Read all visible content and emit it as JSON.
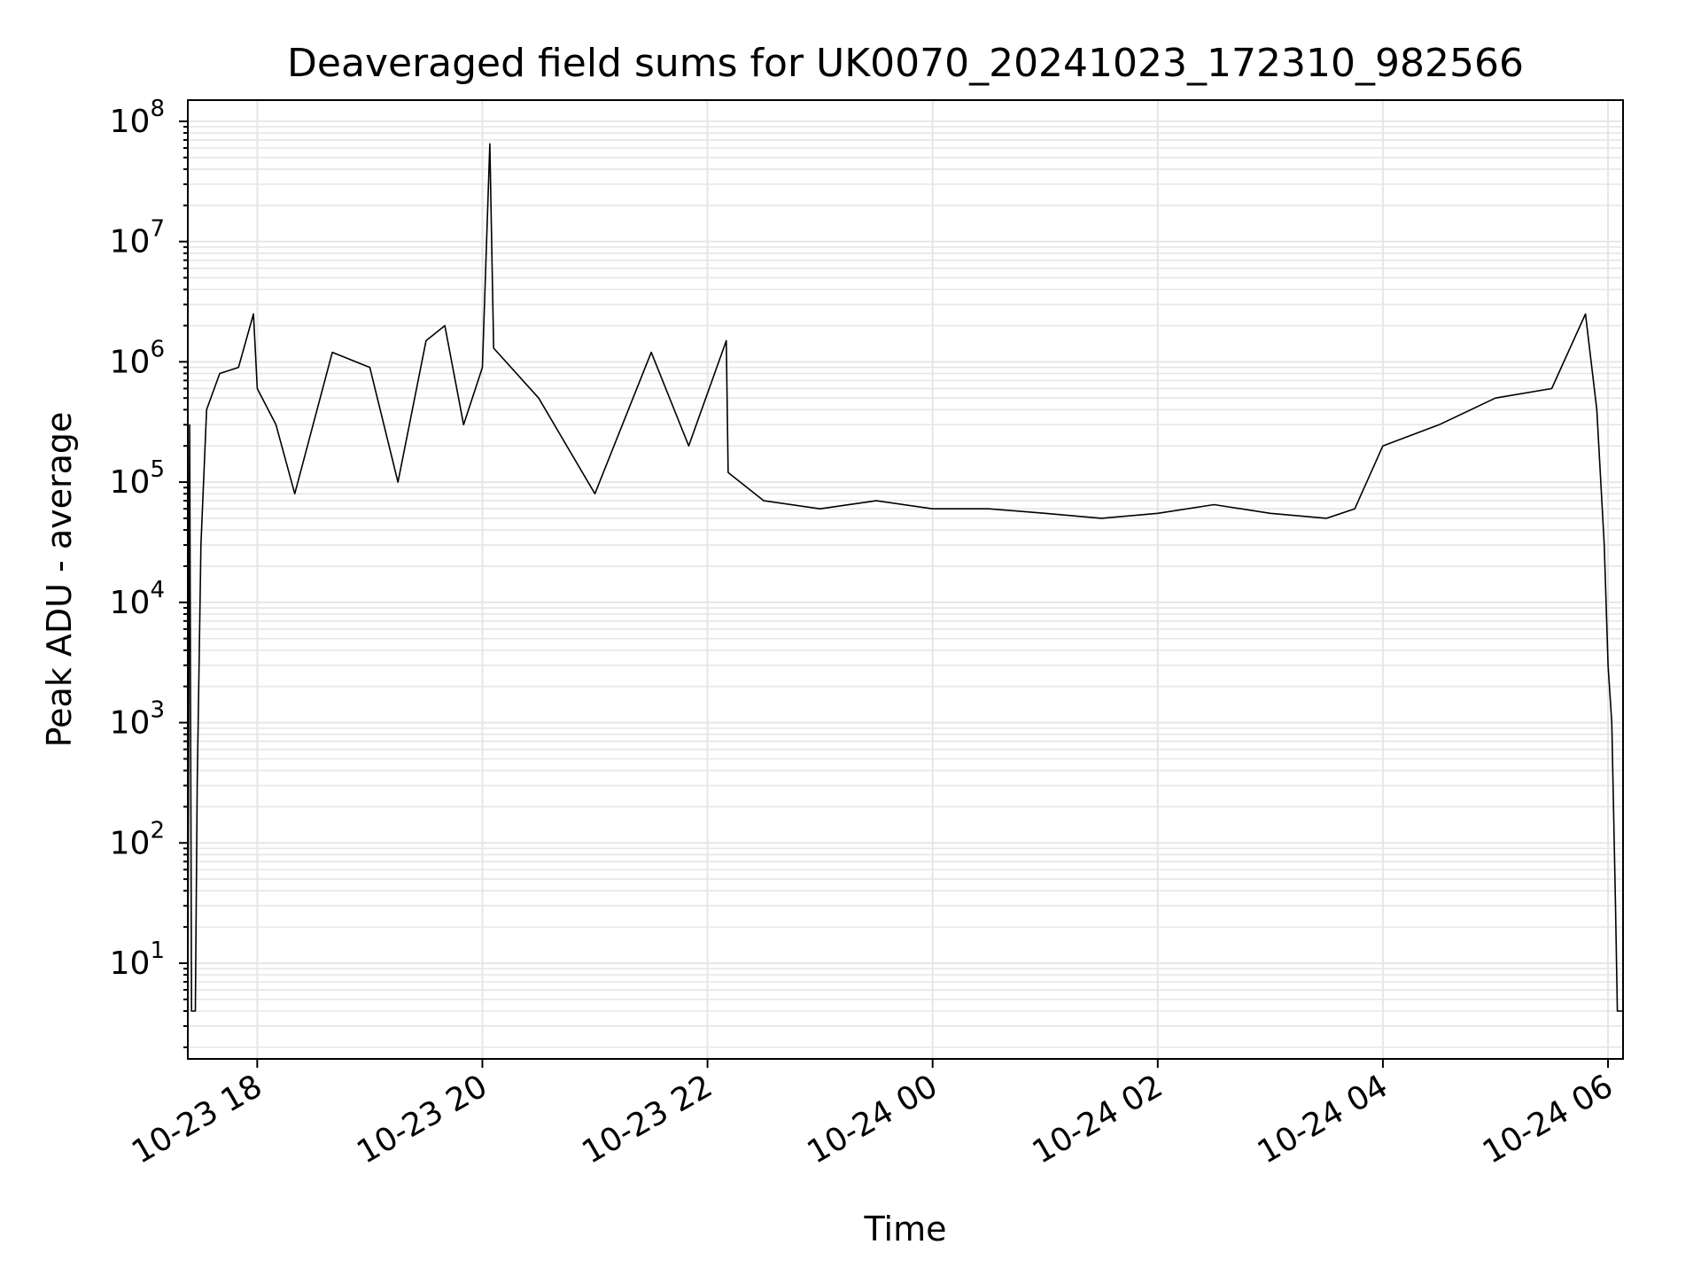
{
  "chart_data": {
    "type": "line",
    "title": "Deaveraged field sums for UK0070_20241023_172310_982566",
    "xlabel": "Time",
    "ylabel": "Peak ADU - average",
    "x_range": [
      "2024-10-23 17:23",
      "2024-10-24 06:08"
    ],
    "ylim": [
      1.6,
      150000000
    ],
    "y_scale": "log",
    "grid": true,
    "color": "#000000",
    "x_ticks": [
      {
        "time": "2024-10-23 18:00",
        "label": "10-23 18"
      },
      {
        "time": "2024-10-23 20:00",
        "label": "10-23 20"
      },
      {
        "time": "2024-10-23 22:00",
        "label": "10-23 22"
      },
      {
        "time": "2024-10-24 00:00",
        "label": "10-24 00"
      },
      {
        "time": "2024-10-24 02:00",
        "label": "10-24 02"
      },
      {
        "time": "2024-10-24 04:00",
        "label": "10-24 04"
      },
      {
        "time": "2024-10-24 06:00",
        "label": "10-24 06"
      }
    ],
    "y_ticks": [
      {
        "value": 10,
        "base": "10",
        "exp": "1"
      },
      {
        "value": 100,
        "base": "10",
        "exp": "2"
      },
      {
        "value": 1000,
        "base": "10",
        "exp": "3"
      },
      {
        "value": 10000,
        "base": "10",
        "exp": "4"
      },
      {
        "value": 100000,
        "base": "10",
        "exp": "5"
      },
      {
        "value": 1000000,
        "base": "10",
        "exp": "6"
      },
      {
        "value": 10000000,
        "base": "10",
        "exp": "7"
      },
      {
        "value": 100000000,
        "base": "10",
        "exp": "8"
      }
    ],
    "series": [
      {
        "points": [
          [
            "2024-10-23 17:23",
            4
          ],
          [
            "2024-10-23 17:24",
            300000
          ],
          [
            "2024-10-23 17:25",
            4
          ],
          [
            "2024-10-23 17:27",
            4
          ],
          [
            "2024-10-23 17:28",
            300
          ],
          [
            "2024-10-23 17:30",
            30000
          ],
          [
            "2024-10-23 17:33",
            400000
          ],
          [
            "2024-10-23 17:40",
            800000
          ],
          [
            "2024-10-23 17:50",
            900000
          ],
          [
            "2024-10-23 17:58",
            2500000
          ],
          [
            "2024-10-23 18:00",
            600000
          ],
          [
            "2024-10-23 18:10",
            300000
          ],
          [
            "2024-10-23 18:20",
            80000
          ],
          [
            "2024-10-23 18:40",
            1200000
          ],
          [
            "2024-10-23 19:00",
            900000
          ],
          [
            "2024-10-23 19:15",
            100000
          ],
          [
            "2024-10-23 19:30",
            1500000
          ],
          [
            "2024-10-23 19:40",
            2000000
          ],
          [
            "2024-10-23 19:50",
            300000
          ],
          [
            "2024-10-23 20:00",
            900000
          ],
          [
            "2024-10-23 20:04",
            65000000
          ],
          [
            "2024-10-23 20:06",
            1300000
          ],
          [
            "2024-10-23 20:30",
            500000
          ],
          [
            "2024-10-23 21:00",
            80000
          ],
          [
            "2024-10-23 21:30",
            1200000
          ],
          [
            "2024-10-23 21:50",
            200000
          ],
          [
            "2024-10-23 22:10",
            1500000
          ],
          [
            "2024-10-23 22:11",
            120000
          ],
          [
            "2024-10-23 22:30",
            70000
          ],
          [
            "2024-10-23 23:00",
            60000
          ],
          [
            "2024-10-23 23:30",
            70000
          ],
          [
            "2024-10-24 00:00",
            60000
          ],
          [
            "2024-10-24 00:30",
            60000
          ],
          [
            "2024-10-24 01:00",
            55000
          ],
          [
            "2024-10-24 01:30",
            50000
          ],
          [
            "2024-10-24 02:00",
            55000
          ],
          [
            "2024-10-24 02:30",
            65000
          ],
          [
            "2024-10-24 03:00",
            55000
          ],
          [
            "2024-10-24 03:30",
            50000
          ],
          [
            "2024-10-24 03:45",
            60000
          ],
          [
            "2024-10-24 04:00",
            200000
          ],
          [
            "2024-10-24 04:30",
            300000
          ],
          [
            "2024-10-24 05:00",
            500000
          ],
          [
            "2024-10-24 05:30",
            600000
          ],
          [
            "2024-10-24 05:48",
            2500000
          ],
          [
            "2024-10-24 05:54",
            400000
          ],
          [
            "2024-10-24 05:58",
            30000
          ],
          [
            "2024-10-24 06:00",
            3000
          ],
          [
            "2024-10-24 06:02",
            1000
          ],
          [
            "2024-10-24 06:04",
            30
          ],
          [
            "2024-10-24 06:05",
            4
          ],
          [
            "2024-10-24 06:08",
            4
          ]
        ]
      }
    ]
  }
}
